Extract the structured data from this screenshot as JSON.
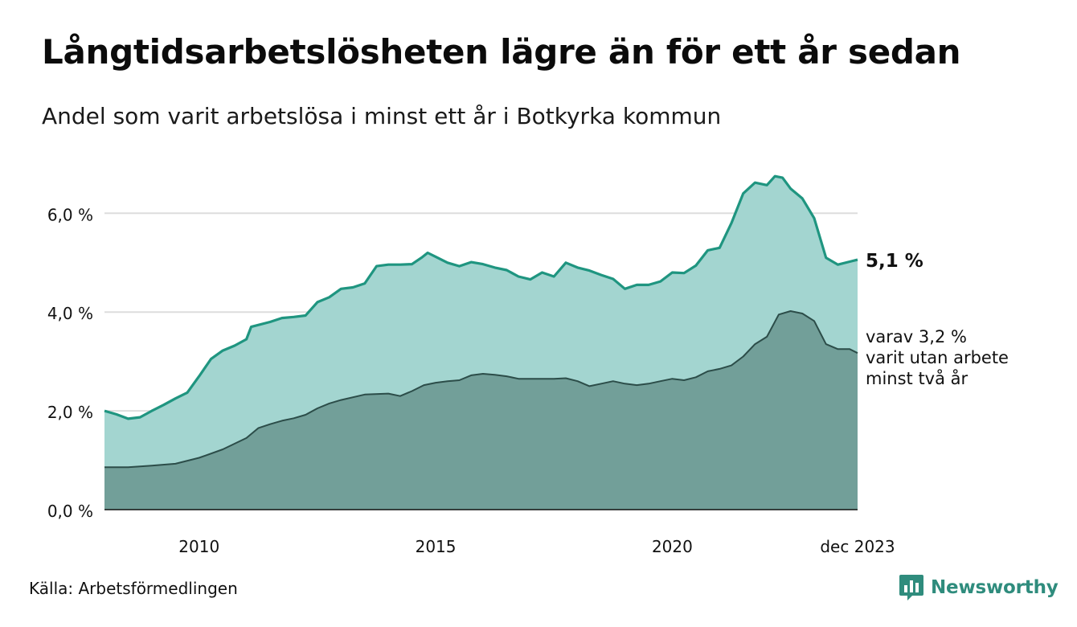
{
  "header": {
    "title": "Långtidsarbetslösheten lägre än för ett år sedan",
    "subtitle": "Andel som varit arbetslösa i minst ett år i Botkyrka kommun"
  },
  "footer": {
    "source": "Källa: Arbetsförmedlingen",
    "brand": "Newsworthy"
  },
  "colors": {
    "area_total": "#a3d5d0",
    "line_total": "#1f9580",
    "area_two_year": "#729f99",
    "line_two_year": "#2c4d49",
    "grid": "#dddddd"
  },
  "chart_data": {
    "type": "area",
    "title": "Långtidsarbetslösheten lägre än för ett år sedan",
    "subtitle": "Andel som varit arbetslösa i minst ett år i Botkyrka kommun",
    "xlabel": "",
    "ylabel": "",
    "x_range": [
      2008.0,
      2023.917
    ],
    "ylim": [
      0,
      6.9
    ],
    "y_ticks": [
      0,
      2,
      4,
      6
    ],
    "y_tick_labels": [
      "0,0 %",
      "2,0 %",
      "4,0 %",
      "6,0 %"
    ],
    "x_ticks": [
      2010,
      2015,
      2020,
      2023.917
    ],
    "x_tick_labels": [
      "2010",
      "2015",
      "2020",
      "dec 2023"
    ],
    "grid": true,
    "series": [
      {
        "name": "Minst ett år",
        "end_label": "5,1 %",
        "points": [
          [
            2008.0,
            2.0
          ],
          [
            2008.25,
            1.93
          ],
          [
            2008.5,
            1.84
          ],
          [
            2008.75,
            1.87
          ],
          [
            2009.0,
            2.0
          ],
          [
            2009.25,
            2.12
          ],
          [
            2009.5,
            2.25
          ],
          [
            2009.75,
            2.37
          ],
          [
            2010.0,
            2.7
          ],
          [
            2010.25,
            3.05
          ],
          [
            2010.5,
            3.22
          ],
          [
            2010.75,
            3.32
          ],
          [
            2011.0,
            3.45
          ],
          [
            2011.1,
            3.7
          ],
          [
            2011.5,
            3.8
          ],
          [
            2011.75,
            3.88
          ],
          [
            2012.0,
            3.9
          ],
          [
            2012.25,
            3.93
          ],
          [
            2012.5,
            4.2
          ],
          [
            2012.75,
            4.3
          ],
          [
            2013.0,
            4.47
          ],
          [
            2013.25,
            4.5
          ],
          [
            2013.5,
            4.58
          ],
          [
            2013.75,
            4.93
          ],
          [
            2014.0,
            4.96
          ],
          [
            2014.25,
            4.96
          ],
          [
            2014.5,
            4.97
          ],
          [
            2014.7,
            5.1
          ],
          [
            2014.83,
            5.2
          ],
          [
            2015.0,
            5.12
          ],
          [
            2015.25,
            5.0
          ],
          [
            2015.5,
            4.93
          ],
          [
            2015.75,
            5.01
          ],
          [
            2016.0,
            4.97
          ],
          [
            2016.25,
            4.9
          ],
          [
            2016.5,
            4.85
          ],
          [
            2016.75,
            4.72
          ],
          [
            2017.0,
            4.66
          ],
          [
            2017.25,
            4.8
          ],
          [
            2017.5,
            4.72
          ],
          [
            2017.75,
            5.0
          ],
          [
            2018.0,
            4.9
          ],
          [
            2018.25,
            4.84
          ],
          [
            2018.5,
            4.75
          ],
          [
            2018.75,
            4.67
          ],
          [
            2019.0,
            4.47
          ],
          [
            2019.25,
            4.55
          ],
          [
            2019.5,
            4.55
          ],
          [
            2019.75,
            4.62
          ],
          [
            2020.0,
            4.8
          ],
          [
            2020.25,
            4.79
          ],
          [
            2020.5,
            4.94
          ],
          [
            2020.75,
            5.25
          ],
          [
            2021.0,
            5.3
          ],
          [
            2021.25,
            5.8
          ],
          [
            2021.5,
            6.4
          ],
          [
            2021.75,
            6.62
          ],
          [
            2022.0,
            6.57
          ],
          [
            2022.17,
            6.75
          ],
          [
            2022.33,
            6.72
          ],
          [
            2022.5,
            6.5
          ],
          [
            2022.75,
            6.3
          ],
          [
            2023.0,
            5.9
          ],
          [
            2023.25,
            5.1
          ],
          [
            2023.5,
            4.96
          ],
          [
            2023.75,
            5.02
          ],
          [
            2023.917,
            5.06
          ]
        ]
      },
      {
        "name": "Minst två år",
        "end_label": "varav 3,2 % varit utan arbete minst två år",
        "end_label_lines": [
          "varav 3,2 %",
          "varit utan arbete",
          "minst två år"
        ],
        "points": [
          [
            2008.0,
            0.86
          ],
          [
            2008.5,
            0.86
          ],
          [
            2009.0,
            0.89
          ],
          [
            2009.5,
            0.93
          ],
          [
            2010.0,
            1.05
          ],
          [
            2010.5,
            1.22
          ],
          [
            2011.0,
            1.45
          ],
          [
            2011.25,
            1.65
          ],
          [
            2011.5,
            1.73
          ],
          [
            2011.75,
            1.8
          ],
          [
            2012.0,
            1.85
          ],
          [
            2012.25,
            1.92
          ],
          [
            2012.5,
            2.05
          ],
          [
            2012.75,
            2.15
          ],
          [
            2013.0,
            2.22
          ],
          [
            2013.5,
            2.33
          ],
          [
            2014.0,
            2.35
          ],
          [
            2014.25,
            2.3
          ],
          [
            2014.5,
            2.4
          ],
          [
            2014.75,
            2.52
          ],
          [
            2015.0,
            2.57
          ],
          [
            2015.25,
            2.6
          ],
          [
            2015.5,
            2.62
          ],
          [
            2015.75,
            2.72
          ],
          [
            2016.0,
            2.75
          ],
          [
            2016.25,
            2.73
          ],
          [
            2016.5,
            2.7
          ],
          [
            2016.75,
            2.65
          ],
          [
            2017.0,
            2.65
          ],
          [
            2017.5,
            2.65
          ],
          [
            2017.75,
            2.66
          ],
          [
            2018.0,
            2.6
          ],
          [
            2018.25,
            2.5
          ],
          [
            2018.5,
            2.55
          ],
          [
            2018.75,
            2.6
          ],
          [
            2019.0,
            2.55
          ],
          [
            2019.25,
            2.52
          ],
          [
            2019.5,
            2.55
          ],
          [
            2019.75,
            2.6
          ],
          [
            2020.0,
            2.65
          ],
          [
            2020.25,
            2.62
          ],
          [
            2020.5,
            2.68
          ],
          [
            2020.75,
            2.8
          ],
          [
            2021.0,
            2.85
          ],
          [
            2021.25,
            2.92
          ],
          [
            2021.5,
            3.1
          ],
          [
            2021.75,
            3.35
          ],
          [
            2022.0,
            3.5
          ],
          [
            2022.25,
            3.95
          ],
          [
            2022.5,
            4.02
          ],
          [
            2022.75,
            3.97
          ],
          [
            2023.0,
            3.82
          ],
          [
            2023.25,
            3.35
          ],
          [
            2023.5,
            3.25
          ],
          [
            2023.75,
            3.25
          ],
          [
            2023.917,
            3.17
          ]
        ]
      }
    ]
  }
}
